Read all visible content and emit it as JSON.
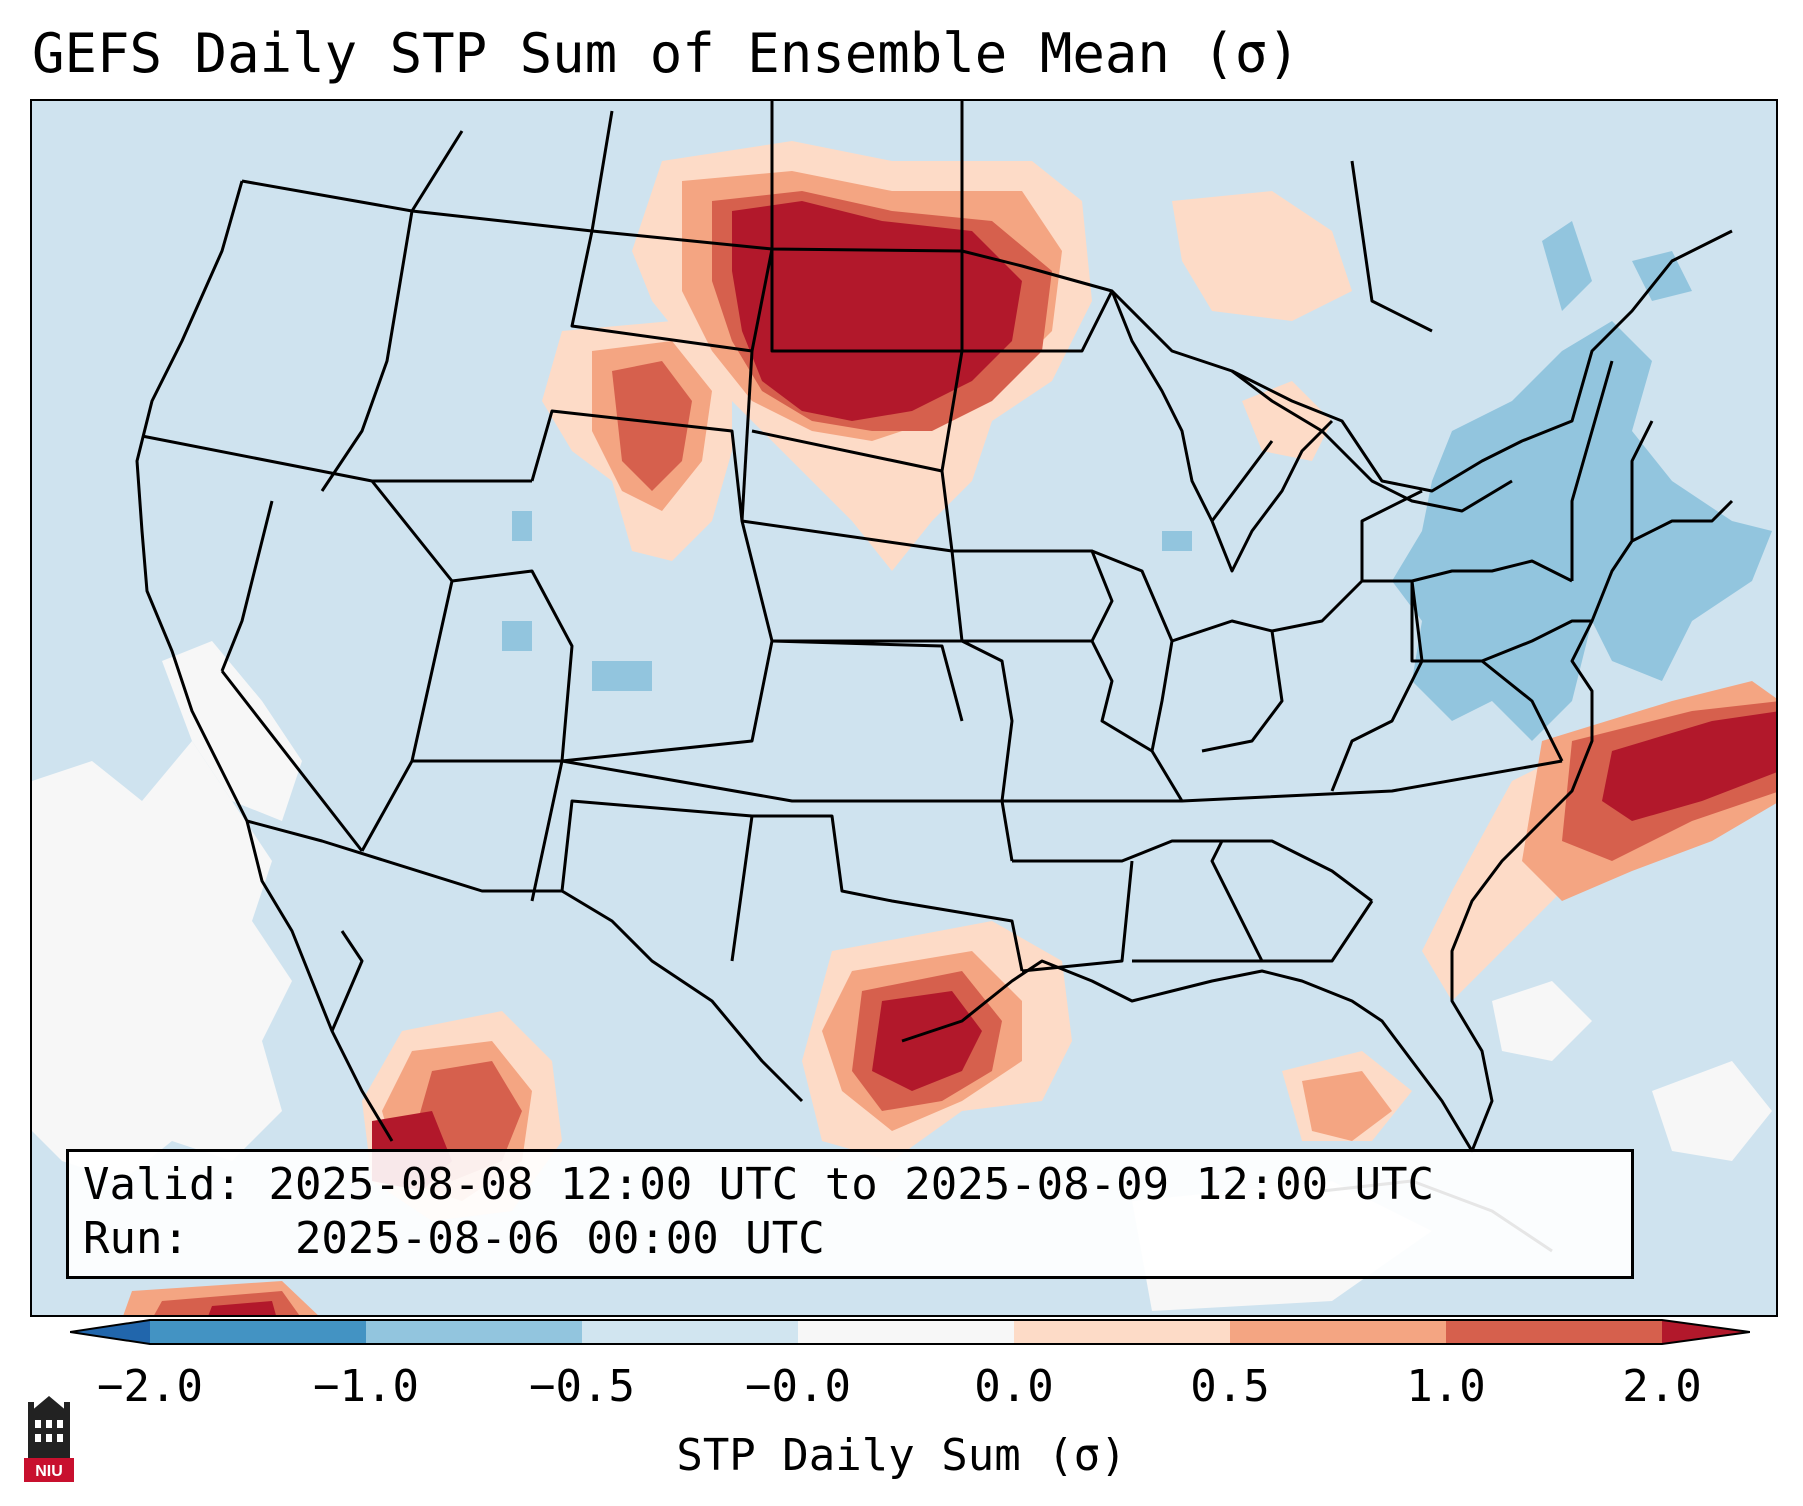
{
  "title": "GEFS Daily STP Sum of Ensemble Mean (σ)",
  "info": {
    "valid_label": "Valid:",
    "valid_value": "2025-08-08 12:00 UTC to 2025-08-09 12:00 UTC",
    "run_label": "Run:",
    "run_value": "2025-08-06 00:00 UTC"
  },
  "colorbar": {
    "label": "STP Daily Sum (σ)",
    "ticks": [
      "−2.0",
      "−1.0",
      "−0.5",
      "−0.0",
      "0.0",
      "0.5",
      "1.0",
      "2.0"
    ],
    "colors": [
      "#4393c3",
      "#92c5de",
      "#d1e5f0",
      "#f7f7f7",
      "#fddbc7",
      "#f4a582",
      "#d6604d",
      "#b2182b"
    ],
    "under_color": "#2166ac",
    "over_color": "#b2182b"
  },
  "logo": {
    "text": "NIU",
    "icon": "niu-tower-logo"
  },
  "map": {
    "projection": "Lambert Conformal, CONUS",
    "background_color": "#cfe3ef",
    "highlight_regions": [
      {
        "name": "Northern Plains / North Dakota",
        "level": "2.0"
      },
      {
        "name": "Montana",
        "level": "1.0"
      },
      {
        "name": "Central Texas",
        "level": "2.0"
      },
      {
        "name": "Western Atlantic",
        "level": "2.0"
      },
      {
        "name": "Northwest Mexico",
        "level": "1.0"
      },
      {
        "name": "Northeast US / New England",
        "level": "−1.0"
      }
    ]
  }
}
